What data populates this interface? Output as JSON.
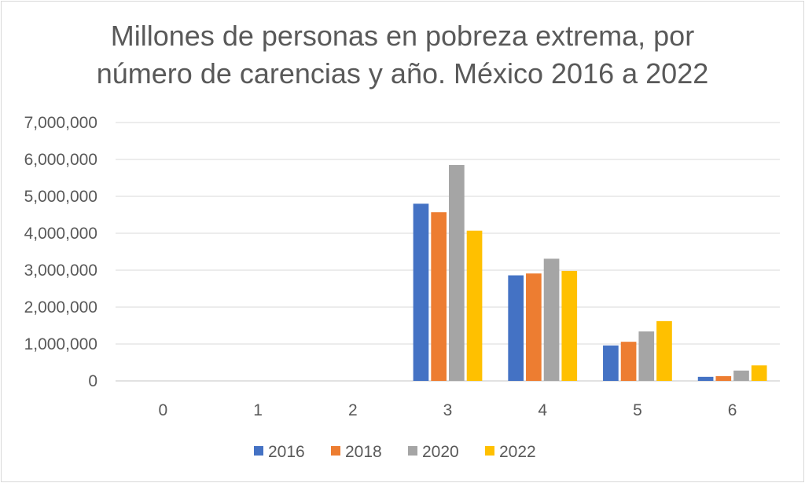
{
  "chart_data": {
    "type": "bar",
    "title_lines": [
      "Millones de personas en pobreza extrema, por",
      "número de carencias y año. México 2016 a 2022"
    ],
    "xlabel": "",
    "ylabel": "",
    "categories": [
      "0",
      "1",
      "2",
      "3",
      "4",
      "5",
      "6"
    ],
    "ylim": [
      0,
      7000000
    ],
    "yticks": [
      0,
      1000000,
      2000000,
      3000000,
      4000000,
      5000000,
      6000000,
      7000000
    ],
    "ytick_labels": [
      "0",
      "1,000,000",
      "2,000,000",
      "3,000,000",
      "4,000,000",
      "5,000,000",
      "6,000,000",
      "7,000,000"
    ],
    "grid": true,
    "legend_position": "bottom",
    "series": [
      {
        "name": "2016",
        "color": "#4472c4",
        "values": [
          0,
          0,
          0,
          4800000,
          2860000,
          960000,
          110000
        ]
      },
      {
        "name": "2018",
        "color": "#ed7d31",
        "values": [
          0,
          0,
          0,
          4570000,
          2910000,
          1060000,
          130000
        ]
      },
      {
        "name": "2020",
        "color": "#a5a5a5",
        "values": [
          0,
          0,
          0,
          5850000,
          3310000,
          1340000,
          280000
        ]
      },
      {
        "name": "2022",
        "color": "#ffc000",
        "values": [
          0,
          0,
          0,
          4070000,
          2980000,
          1620000,
          420000
        ]
      }
    ]
  }
}
